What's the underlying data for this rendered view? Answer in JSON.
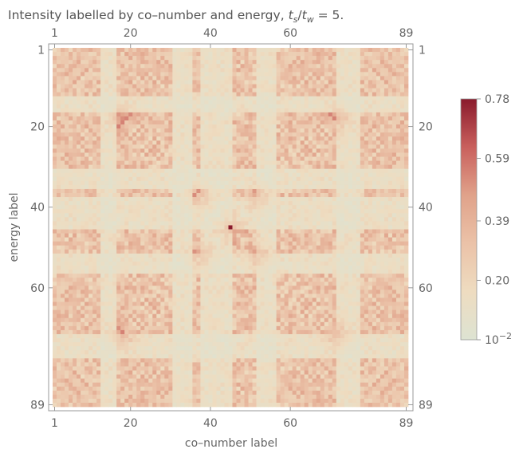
{
  "chart_data": {
    "type": "heatmap",
    "title": {
      "prefix": "Intensity labelled by co–number and energy, ",
      "ratio_num": "t",
      "ratio_num_sub": "s",
      "slash": "/",
      "ratio_den": "t",
      "ratio_den_sub": "w",
      "suffix": " = 5."
    },
    "xlabel": "co–number label",
    "ylabel": "energy label",
    "n": 89,
    "xticks": [
      1,
      20,
      40,
      60,
      89
    ],
    "yticks": [
      1,
      20,
      40,
      60,
      89
    ],
    "xlim": [
      1,
      89
    ],
    "ylim": [
      1,
      89
    ],
    "colorbar": {
      "min": 0.01,
      "max": 0.78,
      "ticks": [
        {
          "value": 0.78,
          "label": "0.78"
        },
        {
          "value": 0.59,
          "label": "0.59"
        },
        {
          "value": 0.39,
          "label": "0.39"
        },
        {
          "value": 0.2,
          "label": "0.20"
        },
        {
          "value": 0.01,
          "label": "10",
          "sup": "−2"
        }
      ],
      "colors": [
        "#dde3d2",
        "#eedcc0",
        "#ebc2a8",
        "#e0a28a",
        "#c9605d",
        "#8a1a2c"
      ]
    },
    "summary": {
      "peak": {
        "x": 45,
        "y": 45,
        "value": 0.78
      },
      "floor_value": 0.01,
      "symmetry": "symmetric under x -> 90-x, y -> 90-y and x <-> y",
      "low_bands": [
        [
          13,
          16
        ],
        [
          31,
          35
        ],
        [
          38,
          45
        ],
        [
          52,
          56
        ],
        [
          72,
          77
        ]
      ],
      "hot_spots": [
        [
          18,
          18
        ],
        [
          72,
          18
        ],
        [
          18,
          72
        ],
        [
          72,
          72
        ],
        [
          38,
          38
        ],
        [
          52,
          38
        ],
        [
          38,
          52
        ],
        [
          52,
          52
        ],
        [
          45,
          45
        ]
      ]
    }
  }
}
